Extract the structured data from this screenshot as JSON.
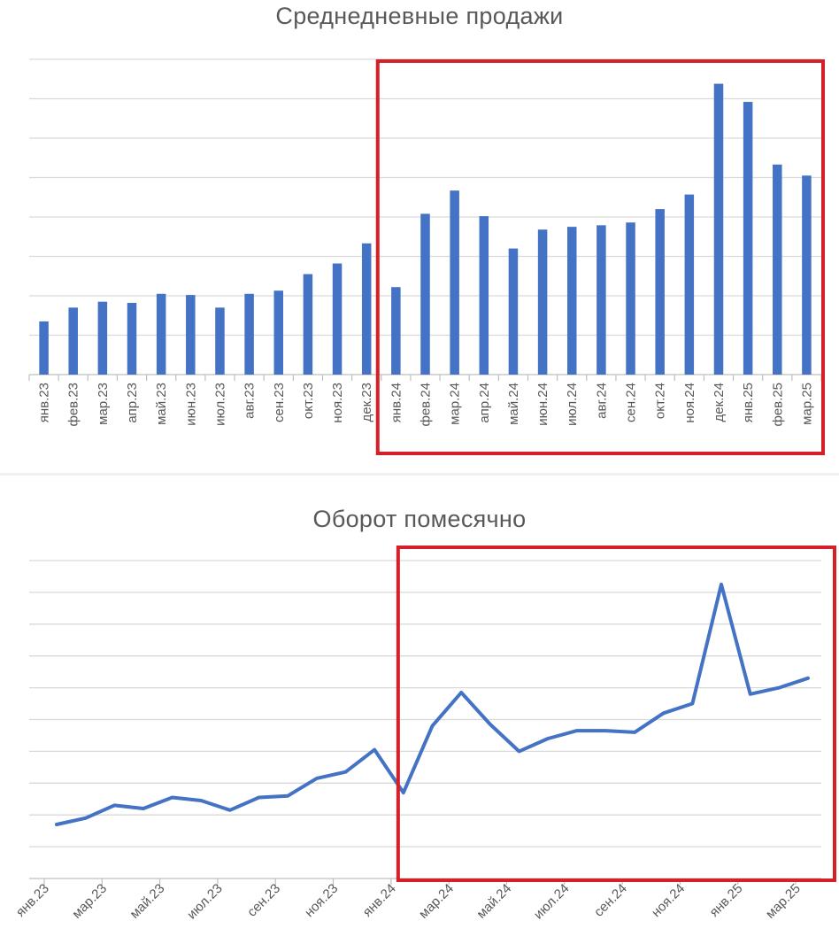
{
  "chart_data": [
    {
      "type": "bar",
      "title": "Среднедневные продажи",
      "categories": [
        "янв.23",
        "фев.23",
        "мар.23",
        "апр.23",
        "май.23",
        "июн.23",
        "июл.23",
        "авг.23",
        "сен.23",
        "окт.23",
        "ноя.23",
        "дек.23",
        "янв.24",
        "фев.24",
        "мар.24",
        "апр.24",
        "май.24",
        "июн.24",
        "июл.24",
        "авг.24",
        "сен.24",
        "окт.24",
        "ноя.24",
        "дек.24",
        "янв.25",
        "фев.25",
        "мар.25"
      ],
      "values": [
        1.35,
        1.7,
        1.85,
        1.82,
        2.05,
        2.02,
        1.7,
        2.05,
        2.13,
        2.55,
        2.82,
        3.33,
        2.22,
        4.08,
        4.67,
        4.02,
        3.2,
        3.68,
        3.75,
        3.79,
        3.86,
        4.2,
        4.57,
        7.38,
        6.92,
        5.33,
        5.05
      ],
      "ylim": [
        0,
        8
      ],
      "grid": true,
      "yaxis_tick_labels_visible": false,
      "highlight_range": [
        "янв.24",
        "мар.25"
      ],
      "highlight_color": "#d61f26",
      "bar_color": "#4472c4"
    },
    {
      "type": "line",
      "title": "Оборот помесячно",
      "x": [
        "янв.23",
        "фев.23",
        "мар.23",
        "апр.23",
        "май.23",
        "июн.23",
        "июл.23",
        "авг.23",
        "сен.23",
        "окт.23",
        "ноя.23",
        "дек.23",
        "янв.24",
        "фев.24",
        "мар.24",
        "апр.24",
        "май.24",
        "июн.24",
        "июл.24",
        "авг.24",
        "сен.24",
        "окт.24",
        "ноя.24",
        "дек.24",
        "янв.25",
        "фев.25",
        "мар.25"
      ],
      "tick_labels": [
        "янв.23",
        "мар.23",
        "май.23",
        "июл.23",
        "сен.23",
        "ноя.23",
        "янв.24",
        "мар.24",
        "май.24",
        "июл.24",
        "сен.24",
        "ноя.24",
        "янв.25",
        "мар.25"
      ],
      "values": [
        1.7,
        1.9,
        2.3,
        2.2,
        2.55,
        2.45,
        2.15,
        2.55,
        2.6,
        3.15,
        3.35,
        4.05,
        2.7,
        4.8,
        5.85,
        4.85,
        4.0,
        4.4,
        4.65,
        4.65,
        4.6,
        5.2,
        5.5,
        9.25,
        5.8,
        6.0,
        6.3
      ],
      "ylim": [
        0,
        10
      ],
      "grid": true,
      "yaxis_tick_labels_visible": false,
      "highlight_range": [
        "янв.24",
        "мар.25"
      ],
      "highlight_color": "#d61f26",
      "line_color": "#4472c4"
    }
  ]
}
